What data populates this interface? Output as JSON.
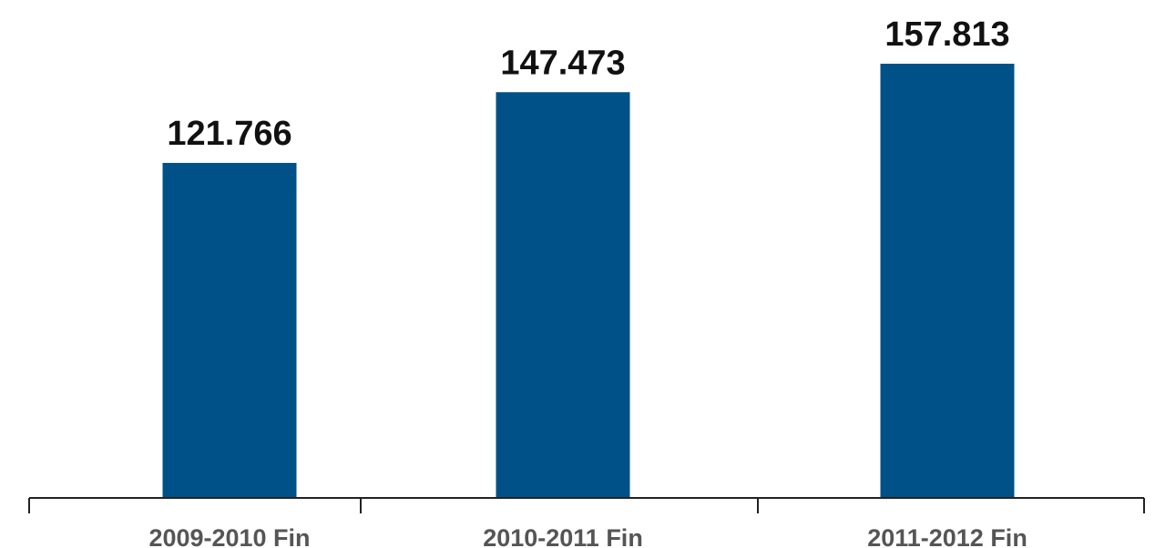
{
  "chart_data": {
    "type": "bar",
    "categories": [
      "2009-2010 Fin",
      "2010-2011 Fin",
      "2011-2012 Fin"
    ],
    "values": [
      121.766,
      147.473,
      157.813
    ],
    "value_labels": [
      "121.766",
      "147.473",
      "157.813"
    ],
    "title": "",
    "xlabel": "",
    "ylabel": "",
    "ylim": [
      0,
      168
    ],
    "grid": false,
    "legend": "none",
    "colors": {
      "bar": "#005188",
      "axis": "#222222",
      "value_text": "#111111",
      "tick_text": "#555555"
    }
  }
}
